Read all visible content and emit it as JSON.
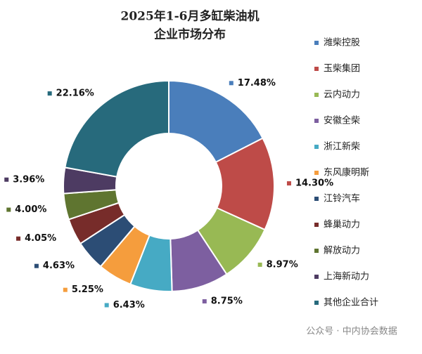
{
  "chart_data": {
    "type": "donut",
    "title": "2025年1-6月多缸柴油机",
    "subtitle": "企业市场分布",
    "categories": [
      "潍柴控股",
      "玉柴集团",
      "云内动力",
      "安徽全柴",
      "浙江新柴",
      "东风康明斯",
      "江铃汽车",
      "蜂巢动力",
      "解放动力",
      "上海新动力",
      "其他企业合计"
    ],
    "values": [
      17.48,
      14.3,
      8.97,
      8.75,
      6.43,
      5.25,
      4.63,
      4.05,
      4.0,
      3.96,
      22.16
    ],
    "value_labels": [
      "17.48%",
      "14.30%",
      "8.97%",
      "8.75%",
      "6.43%",
      "5.25%",
      "4.63%",
      "4.05%",
      "4.00%",
      "3.96%",
      "22.16%"
    ],
    "colors": [
      "#4a7ebb",
      "#be4b48",
      "#98b954",
      "#7d5fa0",
      "#46aac4",
      "#f59d3d",
      "#2c4d75",
      "#772c2a",
      "#5f7530",
      "#4d3b62",
      "#276a7c"
    ],
    "legend": "right",
    "watermark": "公众号 · 中内协会数据"
  }
}
